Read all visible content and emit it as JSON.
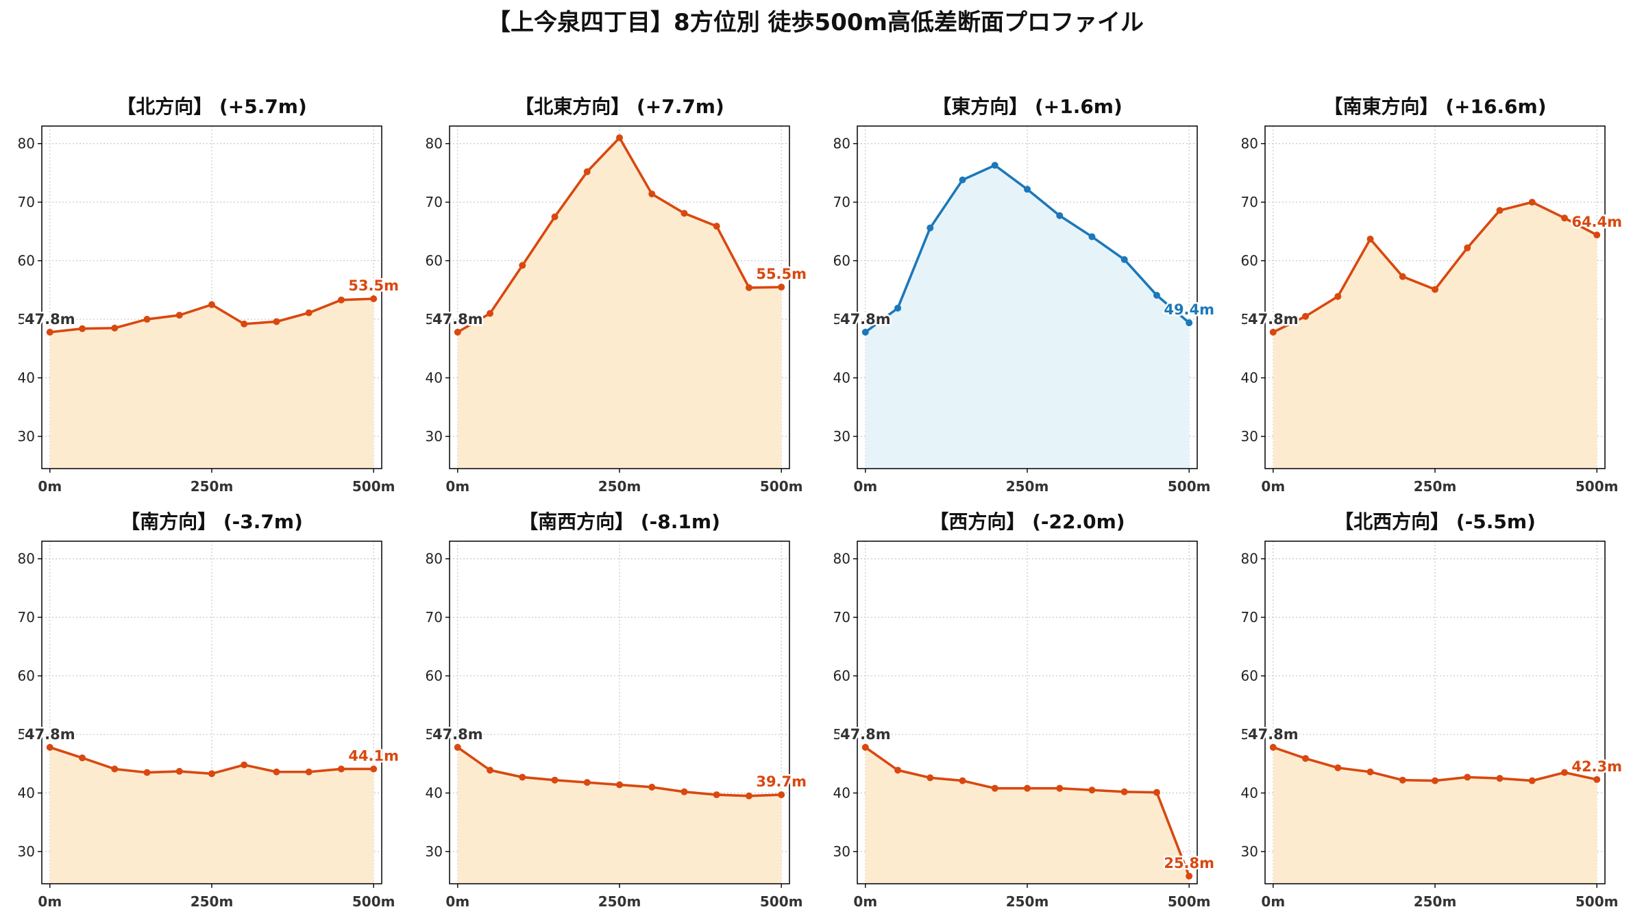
{
  "title": "【上今泉四丁目】8方位別 徒歩500m高低差断面プロファイル",
  "colors": {
    "rise_line": "#d9480f",
    "rise_fill": "#fdebd0",
    "flat_line": "#1c78b9",
    "flat_fill": "#e6f4fa",
    "grid": "#c8c8c8",
    "axis": "#000000"
  },
  "chart_data": [
    {
      "type": "area",
      "title": "【北方向】 (+5.7m)",
      "x": [
        0,
        50,
        100,
        150,
        200,
        250,
        300,
        350,
        400,
        450,
        500
      ],
      "y": [
        47.8,
        48.4,
        48.5,
        50.0,
        50.7,
        52.5,
        49.2,
        49.6,
        51.1,
        53.3,
        53.5
      ],
      "start_label": "47.8m",
      "end_label": "53.5m",
      "style": "rise",
      "xticks": [
        "0m",
        "250m",
        "500m"
      ],
      "yticks": [
        30,
        40,
        50,
        60,
        70,
        80
      ],
      "ylim": [
        24.5,
        83
      ],
      "xlim": [
        -12.5,
        512.5
      ],
      "grid": true
    },
    {
      "type": "area",
      "title": "【北東方向】 (+7.7m)",
      "x": [
        0,
        50,
        100,
        150,
        200,
        250,
        300,
        350,
        400,
        450,
        500
      ],
      "y": [
        47.8,
        51.0,
        59.2,
        67.5,
        75.2,
        81.0,
        71.4,
        68.1,
        65.9,
        55.4,
        55.5
      ],
      "start_label": "47.8m",
      "end_label": "55.5m",
      "style": "rise",
      "xticks": [
        "0m",
        "250m",
        "500m"
      ],
      "yticks": [
        30,
        40,
        50,
        60,
        70,
        80
      ],
      "ylim": [
        24.5,
        83
      ],
      "xlim": [
        -12.5,
        512.5
      ],
      "grid": true
    },
    {
      "type": "area",
      "title": "【東方向】 (+1.6m)",
      "x": [
        0,
        50,
        100,
        150,
        200,
        250,
        300,
        350,
        400,
        450,
        500
      ],
      "y": [
        47.8,
        51.9,
        65.6,
        73.8,
        76.3,
        72.2,
        67.7,
        64.1,
        60.2,
        54.1,
        49.4
      ],
      "start_label": "47.8m",
      "end_label": "49.4m",
      "style": "flat",
      "xticks": [
        "0m",
        "250m",
        "500m"
      ],
      "yticks": [
        30,
        40,
        50,
        60,
        70,
        80
      ],
      "ylim": [
        24.5,
        83
      ],
      "xlim": [
        -12.5,
        512.5
      ],
      "grid": true
    },
    {
      "type": "area",
      "title": "【南東方向】 (+16.6m)",
      "x": [
        0,
        50,
        100,
        150,
        200,
        250,
        300,
        350,
        400,
        450,
        500
      ],
      "y": [
        47.8,
        50.5,
        53.9,
        63.7,
        57.3,
        55.1,
        62.2,
        68.6,
        70.0,
        67.3,
        64.4
      ],
      "start_label": "47.8m",
      "end_label": "64.4m",
      "style": "rise",
      "xticks": [
        "0m",
        "250m",
        "500m"
      ],
      "yticks": [
        30,
        40,
        50,
        60,
        70,
        80
      ],
      "ylim": [
        24.5,
        83
      ],
      "xlim": [
        -12.5,
        512.5
      ],
      "grid": true
    },
    {
      "type": "area",
      "title": "【南方向】 (-3.7m)",
      "x": [
        0,
        50,
        100,
        150,
        200,
        250,
        300,
        350,
        400,
        450,
        500
      ],
      "y": [
        47.8,
        46.0,
        44.1,
        43.5,
        43.7,
        43.3,
        44.8,
        43.6,
        43.6,
        44.1,
        44.1
      ],
      "start_label": "47.8m",
      "end_label": "44.1m",
      "style": "rise",
      "xticks": [
        "0m",
        "250m",
        "500m"
      ],
      "yticks": [
        30,
        40,
        50,
        60,
        70,
        80
      ],
      "ylim": [
        24.5,
        83
      ],
      "xlim": [
        -12.5,
        512.5
      ],
      "grid": true
    },
    {
      "type": "area",
      "title": "【南西方向】 (-8.1m)",
      "x": [
        0,
        50,
        100,
        150,
        200,
        250,
        300,
        350,
        400,
        450,
        500
      ],
      "y": [
        47.8,
        43.9,
        42.7,
        42.2,
        41.8,
        41.4,
        41.0,
        40.2,
        39.7,
        39.5,
        39.7
      ],
      "start_label": "47.8m",
      "end_label": "39.7m",
      "style": "rise",
      "xticks": [
        "0m",
        "250m",
        "500m"
      ],
      "yticks": [
        30,
        40,
        50,
        60,
        70,
        80
      ],
      "ylim": [
        24.5,
        83
      ],
      "xlim": [
        -12.5,
        512.5
      ],
      "grid": true
    },
    {
      "type": "area",
      "title": "【西方向】 (-22.0m)",
      "x": [
        0,
        50,
        100,
        150,
        200,
        250,
        300,
        350,
        400,
        450,
        500
      ],
      "y": [
        47.8,
        43.9,
        42.6,
        42.1,
        40.8,
        40.8,
        40.8,
        40.5,
        40.2,
        40.1,
        25.8
      ],
      "start_label": "47.8m",
      "end_label": "25.8m",
      "style": "rise",
      "xticks": [
        "0m",
        "250m",
        "500m"
      ],
      "yticks": [
        30,
        40,
        50,
        60,
        70,
        80
      ],
      "ylim": [
        24.5,
        83
      ],
      "xlim": [
        -12.5,
        512.5
      ],
      "grid": true
    },
    {
      "type": "area",
      "title": "【北西方向】 (-5.5m)",
      "x": [
        0,
        50,
        100,
        150,
        200,
        250,
        300,
        350,
        400,
        450,
        500
      ],
      "y": [
        47.8,
        45.9,
        44.3,
        43.6,
        42.2,
        42.1,
        42.7,
        42.5,
        42.1,
        43.5,
        42.3
      ],
      "start_label": "47.8m",
      "end_label": "42.3m",
      "style": "rise",
      "xticks": [
        "0m",
        "250m",
        "500m"
      ],
      "yticks": [
        30,
        40,
        50,
        60,
        70,
        80
      ],
      "ylim": [
        24.5,
        83
      ],
      "xlim": [
        -12.5,
        512.5
      ],
      "grid": true
    }
  ]
}
